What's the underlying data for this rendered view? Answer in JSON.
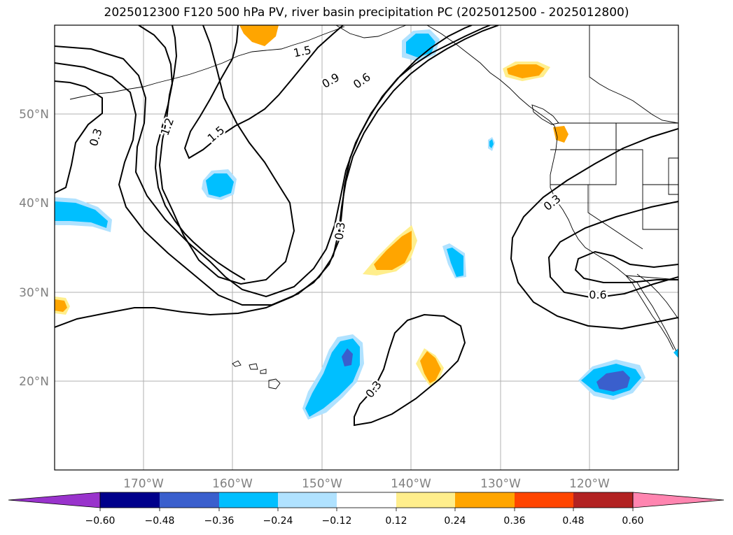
{
  "title": "2025012300 F120 500 hPa PV, river basin precipitation PC (2025012500 - 2025012800)",
  "map": {
    "lat_labels": [
      "50°N",
      "40°N",
      "30°N",
      "20°N"
    ],
    "lon_labels": [
      "170°W",
      "160°W",
      "150°W",
      "140°W",
      "130°W",
      "120°W"
    ],
    "contour_labels": [
      "1.5",
      "0.9",
      "0.6",
      "0.3",
      "1.2",
      "1.5",
      "0.3",
      "0.3",
      "0.3",
      "0.6"
    ]
  },
  "colorbar": {
    "labels": [
      "−0.60",
      "−0.48",
      "−0.36",
      "−0.24",
      "−0.12",
      "0.12",
      "0.24",
      "0.36",
      "0.48",
      "0.60"
    ],
    "colors": [
      "#9933cc",
      "#00008b",
      "#3a5fcd",
      "#00bfff",
      "#b0e2ff",
      "#ffffff",
      "#ffee8c",
      "#ffa500",
      "#ff4500",
      "#b22222",
      "#ff85b0"
    ]
  }
}
